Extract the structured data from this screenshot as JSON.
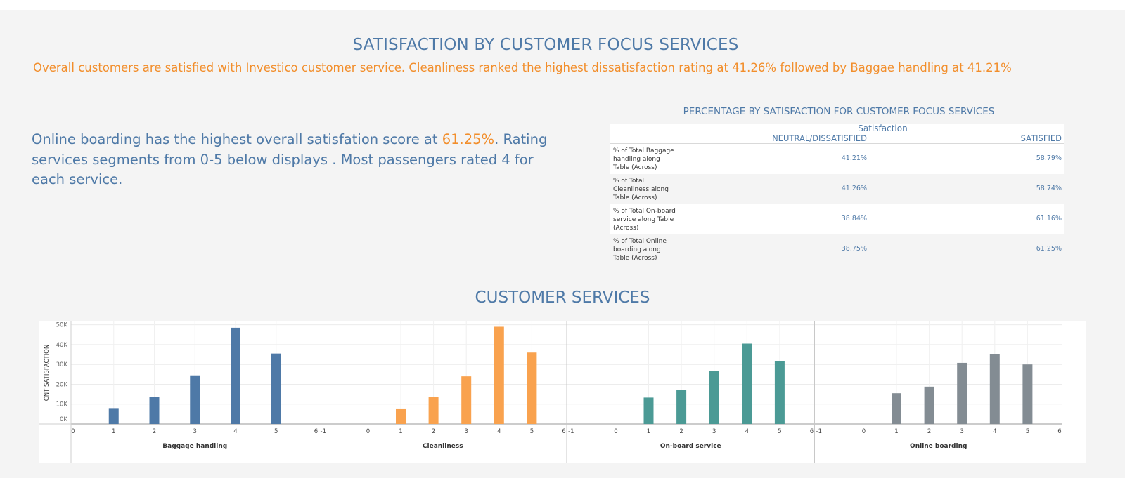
{
  "header": {
    "title": "SATISFACTION BY CUSTOMER FOCUS SERVICES",
    "subtitle": "Overall customers are satisfied with Investico customer service. Cleanliness ranked the   highest dissatisfaction rating at 41.26% followed by Baggae handling at 41.21%"
  },
  "insight": {
    "part1": "Online boarding has the highest overall satisfation score at ",
    "highlight": "61.25%",
    "part2": ". Rating services segments from 0-5 below displays . Most passengers rated 4 for each service."
  },
  "table": {
    "title": "PERCENTAGE BY SATISFACTION FOR CUSTOMER FOCUS SERVICES",
    "column_caption": "Satisfaction",
    "columns": [
      "NEUTRAL/DISSATISFIED",
      "SATISFIED"
    ],
    "rows": [
      {
        "label": "% of Total Baggage handling along Table (Across)",
        "neutral": "41.21%",
        "satisfied": "58.79%"
      },
      {
        "label": "% of Total Cleanliness along Table (Across)",
        "neutral": "41.26%",
        "satisfied": "58.74%"
      },
      {
        "label": "% of Total On-board service along Table (Across)",
        "neutral": "38.84%",
        "satisfied": "61.16%"
      },
      {
        "label": "% of Total Online boarding along Table (Across)",
        "neutral": "38.75%",
        "satisfied": "61.25%"
      }
    ]
  },
  "chart_section": {
    "title": "CUSTOMER SERVICES"
  },
  "chart_data": {
    "type": "bar",
    "ylabel": "CNT SATISFACTION",
    "ylim": [
      0,
      52000
    ],
    "yticks": [
      "0K",
      "10K",
      "20K",
      "30K",
      "40K",
      "50K"
    ],
    "grid": true,
    "x": [
      1,
      2,
      3,
      4,
      5
    ],
    "series": [
      {
        "name": "Baggage handling",
        "color": "#4e79a7",
        "values": [
          8000,
          13500,
          24500,
          48500,
          35500
        ],
        "tick_labels": [
          "0",
          "1",
          "2",
          "3",
          "4",
          "5",
          "6"
        ]
      },
      {
        "name": "Cleanliness",
        "color": "#f9a24e",
        "values": [
          7800,
          13500,
          24000,
          49000,
          36000
        ],
        "tick_labels": [
          "-1",
          "0",
          "1",
          "2",
          "3",
          "4",
          "5",
          "6"
        ]
      },
      {
        "name": "On-board service",
        "color": "#4b9a95",
        "values": [
          13300,
          17200,
          26800,
          40500,
          31700
        ],
        "tick_labels": [
          "-1",
          "0",
          "1",
          "2",
          "3",
          "4",
          "5",
          "6"
        ]
      },
      {
        "name": "Online boarding",
        "color": "#838c93",
        "values": [
          15500,
          18800,
          30800,
          35300,
          30000
        ],
        "tick_labels": [
          "-1",
          "0",
          "1",
          "2",
          "3",
          "4",
          "5",
          "6"
        ]
      }
    ]
  }
}
